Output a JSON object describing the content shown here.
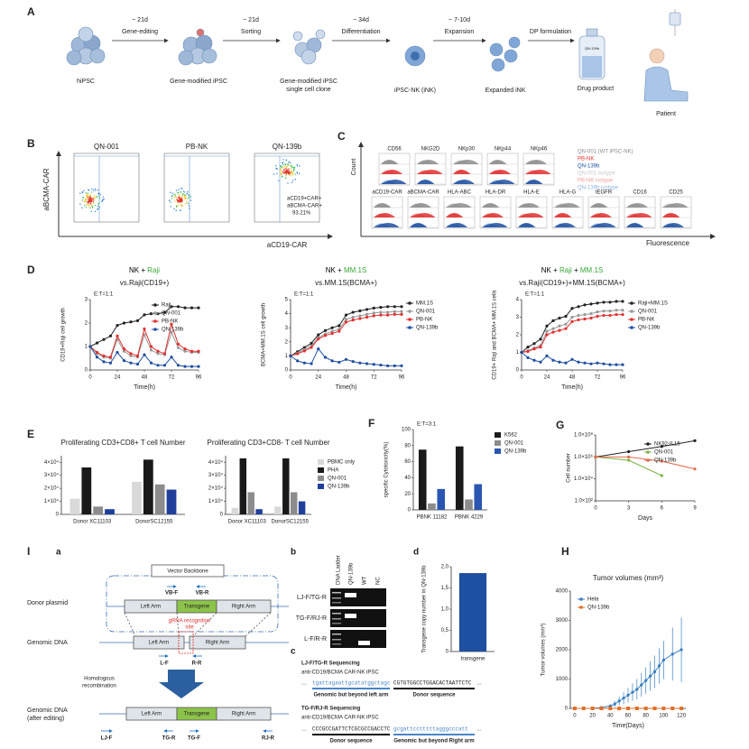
{
  "panel_letters": [
    "A",
    "B",
    "C",
    "D",
    "E",
    "F",
    "G",
    "H",
    "I"
  ],
  "sub_letters": [
    "a",
    "b",
    "c",
    "d"
  ],
  "workflow": {
    "stages": [
      "hiPSC",
      "Gene-modified iPSC",
      "Gene-modified iPSC",
      "single cell clone",
      "iPSC-NK (iNK)",
      "Expanded iNK",
      "Drug product",
      "Patient"
    ],
    "arrows": [
      {
        "time": "~ 21d",
        "label": "Gene-editing"
      },
      {
        "time": "~ 21d",
        "label": "Sorting"
      },
      {
        "time": "~ 34d",
        "label": "Differentiation"
      },
      {
        "time": "~ 7-10d",
        "label": "Expansion"
      },
      {
        "label": "DP formulation"
      }
    ],
    "bottle_label": "QN-139b"
  },
  "flow": {
    "samples": [
      "QN-001",
      "PB-NK",
      "QN-139b"
    ],
    "y_label": "aBCMA-CAR",
    "x_label": "aCD19-CAR",
    "gate_note": [
      "aCD19+CAR+",
      "aBCMA-CAR+",
      "93.21%"
    ]
  },
  "histograms": {
    "count_label": "Count",
    "fluorescence_label": "Fluorescence",
    "row1": [
      "CD56",
      "NKG2D",
      "NKp30",
      "NKp44",
      "NKp46"
    ],
    "row2": [
      "aCD19-CAR",
      "aBCMA-CAR",
      "HLA-ABC",
      "HLA-DR",
      "HLA-E",
      "HLA-G",
      "tEGFR",
      "CD16",
      "CD25"
    ],
    "legend": [
      {
        "label": "QN-001 (WT iPSC-NK)",
        "color": "#8c8c8c"
      },
      {
        "label": "PB-NK",
        "color": "#e03030"
      },
      {
        "label": "QN-139b",
        "color": "#1f4fa0"
      },
      {
        "label": "QN-001 isotype",
        "color": "#c8c8c8"
      },
      {
        "label": "PB-NK isotype",
        "color": "#f0a0a0"
      },
      {
        "label": "QN-139b isotype",
        "color": "#8fb4e0"
      }
    ]
  },
  "donor": {
    "plasmid": "Donor plasmid",
    "backbone": "Vector Backbone",
    "vb_f": "VB-F",
    "vb_r": "VB-R",
    "left_arm": "Left Arm",
    "transgene": "Transgene",
    "right_arm": "Right Arm",
    "grna": [
      "gRNA recognition",
      "site"
    ],
    "genomic": "Genomic DNA",
    "l_f": "L-F",
    "r_r": "R-R",
    "recombination": [
      "Homologous",
      "recombination"
    ],
    "genomic_after": [
      "Genomic DNA",
      "(after editing)"
    ],
    "primers": [
      "LJ-F",
      "TG-R",
      "TG-F",
      "RJ-R"
    ]
  },
  "gel": {
    "lanes": [
      "DNA Ladder",
      "QN-139b",
      "WT",
      "NC"
    ],
    "rows": [
      "LJ-F/TG-R",
      "TG-F/RJ-R",
      "L-F/R-R"
    ]
  },
  "sequencing": {
    "ellipsis": "…",
    "blocks": [
      {
        "title": "LJ-F/TG-R Sequencing",
        "sample": "anti-CD19/BCMA CAR-NK iPSC",
        "seq_a": "tgattagaattgcatatggctagc",
        "seq_b": "CGTGTGGCCTGGACACTAATTCTC",
        "label_a": "Genomic but beyond left arm",
        "label_b": "Donor sequence"
      },
      {
        "title": "TG-F/RJ-R Sequencing",
        "sample": "anti-CD19/BCMA CAR-NK iPSC",
        "seq_a": "CCCGCCGATTCTCGCGCCGACCTC",
        "seq_b": "gcgattcctttttagggcccatt",
        "label_a": "Donor sequence",
        "label_b": "Genomic but beyond Right arm"
      }
    ]
  },
  "chart_data": [
    {
      "type": "line",
      "title_parts": [
        {
          "text": "NK + ",
          "color": "#000000"
        },
        {
          "text": "Raji",
          "color": "#3aa83a"
        }
      ],
      "subtitle": "vs.Raji(CD19+)",
      "annotation": "E:T=1:1",
      "x_label": "Time(h)",
      "y_label": "CD19+Raji cell growth",
      "x": [
        0,
        6,
        12,
        18,
        24,
        30,
        36,
        42,
        48,
        54,
        60,
        66,
        72,
        78,
        84,
        90,
        96
      ],
      "xlim": [
        0,
        96
      ],
      "xticks": [
        0,
        24,
        48,
        72,
        96
      ],
      "ylim": [
        0,
        3
      ],
      "yticks": [
        0,
        1,
        2,
        3
      ],
      "legend": true,
      "series": [
        {
          "name": "Raji",
          "color": "#222222",
          "values": [
            1,
            1.15,
            1.3,
            1.45,
            1.9,
            2.0,
            2.05,
            2.1,
            2.35,
            2.4,
            2.4,
            2.45,
            2.7,
            2.7,
            2.65,
            2.65,
            2.65
          ]
        },
        {
          "name": "QN-001",
          "color": "#999999",
          "values": [
            1,
            0.7,
            0.55,
            0.5,
            1.3,
            0.8,
            0.6,
            0.55,
            1.5,
            0.85,
            0.7,
            0.65,
            1.6,
            0.95,
            0.8,
            0.75,
            0.75
          ]
        },
        {
          "name": "PB-NK",
          "color": "#e03030",
          "values": [
            1,
            0.75,
            0.6,
            0.55,
            1.45,
            0.9,
            0.7,
            0.6,
            1.75,
            1.0,
            0.8,
            0.7,
            1.95,
            1.1,
            0.9,
            0.8,
            0.8
          ]
        },
        {
          "name": "QN-139b",
          "color": "#1f4fa0",
          "values": [
            1,
            0.55,
            0.35,
            0.3,
            0.75,
            0.4,
            0.3,
            0.25,
            0.65,
            0.3,
            0.2,
            0.2,
            0.55,
            0.2,
            0.15,
            0.15,
            0.15
          ]
        }
      ]
    },
    {
      "type": "line",
      "title_parts": [
        {
          "text": "NK + ",
          "color": "#000000"
        },
        {
          "text": "MM.1S",
          "color": "#3aa83a"
        }
      ],
      "subtitle": "vs.MM.1S(BCMA+)",
      "annotation": "E:T=1:1",
      "x_label": "Time(h)",
      "y_label": "BCMA+MM.1S cell growth",
      "x": [
        0,
        6,
        12,
        18,
        24,
        30,
        36,
        42,
        48,
        54,
        60,
        66,
        72,
        78,
        84,
        90,
        96
      ],
      "xlim": [
        0,
        96
      ],
      "xticks": [
        0,
        24,
        48,
        72,
        96
      ],
      "ylim": [
        0,
        5
      ],
      "yticks": [
        0,
        1,
        2,
        3,
        4,
        5
      ],
      "legend": true,
      "series": [
        {
          "name": "MM.1S",
          "color": "#222222",
          "values": [
            1,
            1.3,
            1.6,
            1.9,
            2.5,
            2.8,
            3.0,
            3.15,
            3.9,
            4.1,
            4.2,
            4.3,
            4.4,
            4.45,
            4.5,
            4.5,
            4.5
          ]
        },
        {
          "name": "QN-001",
          "color": "#999999",
          "values": [
            1,
            1.2,
            1.45,
            1.7,
            2.3,
            2.55,
            2.75,
            2.9,
            3.6,
            3.75,
            3.85,
            3.95,
            4.05,
            4.1,
            4.1,
            4.15,
            4.15
          ]
        },
        {
          "name": "PB-NK",
          "color": "#e03030",
          "values": [
            1,
            1.15,
            1.35,
            1.6,
            2.2,
            2.45,
            2.6,
            2.75,
            3.4,
            3.55,
            3.65,
            3.75,
            3.85,
            3.9,
            3.9,
            3.95,
            3.95
          ]
        },
        {
          "name": "QN-139b",
          "color": "#1f4fa0",
          "values": [
            1,
            0.65,
            0.5,
            0.45,
            1.5,
            0.9,
            0.65,
            0.55,
            0.75,
            0.6,
            0.5,
            0.45,
            0.4,
            0.35,
            0.3,
            0.3,
            0.3
          ]
        }
      ]
    },
    {
      "type": "line",
      "title_parts": [
        {
          "text": "NK + ",
          "color": "#000000"
        },
        {
          "text": "Raji",
          "color": "#3aa83a"
        },
        {
          "text": " + ",
          "color": "#000000"
        },
        {
          "text": "MM.1S",
          "color": "#3aa83a"
        }
      ],
      "subtitle": "vs.Raji(CD19+)+MM.1S(BCMA+)",
      "annotation": "E:T=1:1",
      "x_label": "Time(h)",
      "y_label": "CD19+ Raji and BCMA+ MM.1S cells",
      "x": [
        0,
        6,
        12,
        18,
        24,
        30,
        36,
        42,
        48,
        54,
        60,
        66,
        72,
        78,
        84,
        90,
        96
      ],
      "xlim": [
        0,
        96
      ],
      "xticks": [
        0,
        24,
        48,
        72,
        96
      ],
      "ylim": [
        0,
        4
      ],
      "yticks": [
        0,
        1,
        2,
        3,
        4
      ],
      "legend": true,
      "series": [
        {
          "name": "Raji+MM.1S",
          "color": "#222222",
          "values": [
            1,
            1.3,
            1.5,
            1.75,
            2.5,
            2.8,
            2.95,
            3.05,
            3.5,
            3.6,
            3.7,
            3.75,
            3.8,
            3.85,
            3.85,
            3.9,
            3.9
          ]
        },
        {
          "name": "QN-001",
          "color": "#999999",
          "values": [
            1,
            1.1,
            1.25,
            1.4,
            2.2,
            2.35,
            2.5,
            2.6,
            3.0,
            3.1,
            3.15,
            3.2,
            3.3,
            3.35,
            3.35,
            3.4,
            3.4
          ]
        },
        {
          "name": "PB-NK",
          "color": "#e03030",
          "values": [
            1,
            1.05,
            1.2,
            1.3,
            2.0,
            2.15,
            2.25,
            2.35,
            2.75,
            2.85,
            2.9,
            2.95,
            3.05,
            3.1,
            3.1,
            3.15,
            3.15
          ]
        },
        {
          "name": "QN-139b",
          "color": "#1f4fa0",
          "values": [
            1,
            0.7,
            0.55,
            0.45,
            0.8,
            0.55,
            0.45,
            0.4,
            0.6,
            0.45,
            0.4,
            0.35,
            0.4,
            0.35,
            0.3,
            0.3,
            0.3
          ]
        }
      ]
    },
    {
      "type": "bar",
      "title": "Proliferating CD3+CD8+ T cell Number",
      "categories": [
        "Donor XC11103",
        "DonorSC12155"
      ],
      "ylim": [
        0,
        45000
      ],
      "yticks": [
        0,
        {
          "value": 10000,
          "label": "1×10⁴"
        },
        {
          "value": 20000,
          "label": "2×10⁴"
        },
        {
          "value": 30000,
          "label": "3×10⁴"
        },
        {
          "value": 40000,
          "label": "4×10⁴"
        }
      ],
      "series": [
        {
          "color": "#d9d9d9",
          "values": [
            12000,
            25000
          ]
        },
        {
          "color": "#1a1a1a",
          "values": [
            36000,
            42000
          ]
        },
        {
          "color": "#8c8c8c",
          "values": [
            6000,
            23000
          ]
        },
        {
          "color": "#1f3f9a",
          "values": [
            4000,
            19000
          ]
        }
      ]
    },
    {
      "type": "bar",
      "title": "Proliferating CD3+CD8- T cell Number",
      "categories": [
        "Donor XC11103",
        "DonorSC12155"
      ],
      "ylim": [
        0,
        45000
      ],
      "legend": true,
      "yticks": [
        0,
        {
          "value": 10000,
          "label": "1×10⁴"
        },
        {
          "value": 20000,
          "label": "2×10⁴"
        },
        {
          "value": 30000,
          "label": "3×10⁴"
        },
        {
          "value": 40000,
          "label": "4×10⁴"
        }
      ],
      "series": [
        {
          "name": "PBMC only",
          "color": "#d9d9d9",
          "values": [
            5000,
            6000
          ]
        },
        {
          "name": "PHA",
          "color": "#1a1a1a",
          "values": [
            43000,
            43000
          ]
        },
        {
          "name": "QN-001",
          "color": "#8c8c8c",
          "values": [
            17000,
            17000
          ]
        },
        {
          "name": "QN-139b",
          "color": "#1f3f9a",
          "values": [
            4000,
            10000
          ]
        }
      ]
    },
    {
      "type": "bar",
      "annotation": "E:T=3:1",
      "y_label": "specific Cytotoxicity(%)",
      "categories": [
        "PBNK 11182",
        "PBNK 4229"
      ],
      "ylim": [
        0,
        100
      ],
      "yticks": [
        0,
        20,
        40,
        60,
        80,
        100
      ],
      "legend": true,
      "series": [
        {
          "name": "K562",
          "color": "#1a1a1a",
          "values": [
            75,
            79
          ]
        },
        {
          "name": "QN-001",
          "color": "#8c8c8c",
          "values": [
            8,
            13
          ]
        },
        {
          "name": "QN-139b",
          "color": "#2a55b0",
          "values": [
            26,
            32
          ]
        }
      ]
    },
    {
      "type": "line",
      "log_y": true,
      "x_label": "Days",
      "y_label": "Cell number",
      "x": [
        0,
        3,
        6,
        9
      ],
      "xlim": [
        0,
        9
      ],
      "xticks": [
        0,
        3,
        6,
        9
      ],
      "ylim": [
        100,
        100000000
      ],
      "legend": true,
      "yticks": [
        {
          "value": 100,
          "label": "1.0×10²"
        },
        {
          "value": 10000,
          "label": "1.0×10⁴"
        },
        {
          "value": 1000000,
          "label": "1.0×10⁶"
        },
        {
          "value": 100000000,
          "label": "1.0×10⁸"
        }
      ],
      "series": [
        {
          "name": "NK92-IL15",
          "color": "#222222",
          "values": [
            1000000,
            3000000,
            9000000,
            30000000
          ]
        },
        {
          "name": "QN-001",
          "color": "#7cb342",
          "values": [
            1000000,
            500000,
            20000,
            null
          ]
        },
        {
          "name": "QN-139b",
          "color": "#e06a4a",
          "values": [
            1000000,
            1000000,
            400000,
            80000
          ]
        }
      ]
    },
    {
      "type": "bar",
      "y_label": "Transgene copy number in QN-139b",
      "categories": [
        "transgene"
      ],
      "ylim": [
        0,
        2
      ],
      "yticks": [
        0,
        {
          "value": 0.5,
          "label": "0,5"
        },
        {
          "value": 1,
          "label": "1,0"
        },
        {
          "value": 1.5,
          "label": "1,5"
        },
        {
          "value": 2,
          "label": "2,0"
        }
      ],
      "series": [
        {
          "color": "#1f4fa0",
          "values": [
            1.85
          ]
        }
      ]
    },
    {
      "type": "line",
      "title": "Tumor volumes (mm³)",
      "x_label": "Time(Days)",
      "y_label": "Tumor volumes (mm³)",
      "xlim": [
        -5,
        125
      ],
      "xticks": [
        0,
        20,
        40,
        60,
        80,
        100,
        120
      ],
      "ylim": [
        0,
        4000
      ],
      "yticks": [
        0,
        1000,
        2000,
        3000,
        4000
      ],
      "legend": true,
      "series": [
        {
          "name": "Hela",
          "color": "#3a7fc0",
          "x": [
            0,
            10,
            20,
            30,
            40,
            45,
            50,
            55,
            60,
            65,
            70,
            75,
            80,
            85,
            90,
            95,
            100,
            110,
            120
          ],
          "values": [
            0,
            0,
            0,
            30,
            80,
            150,
            250,
            350,
            450,
            550,
            650,
            800,
            950,
            1100,
            1250,
            1450,
            1650,
            1850,
            2000
          ],
          "errors": [
            0,
            0,
            0,
            20,
            60,
            100,
            150,
            200,
            250,
            300,
            350,
            400,
            450,
            500,
            550,
            600,
            650,
            900,
            1100
          ]
        },
        {
          "name": "QN-139b",
          "color": "#e0702a",
          "marker": "square",
          "x": [
            0,
            10,
            20,
            30,
            40,
            50,
            60,
            70,
            80,
            90,
            100,
            110,
            120
          ],
          "values": [
            0,
            0,
            0,
            0,
            0,
            0,
            0,
            0,
            0,
            0,
            0,
            0,
            0
          ]
        }
      ]
    }
  ]
}
